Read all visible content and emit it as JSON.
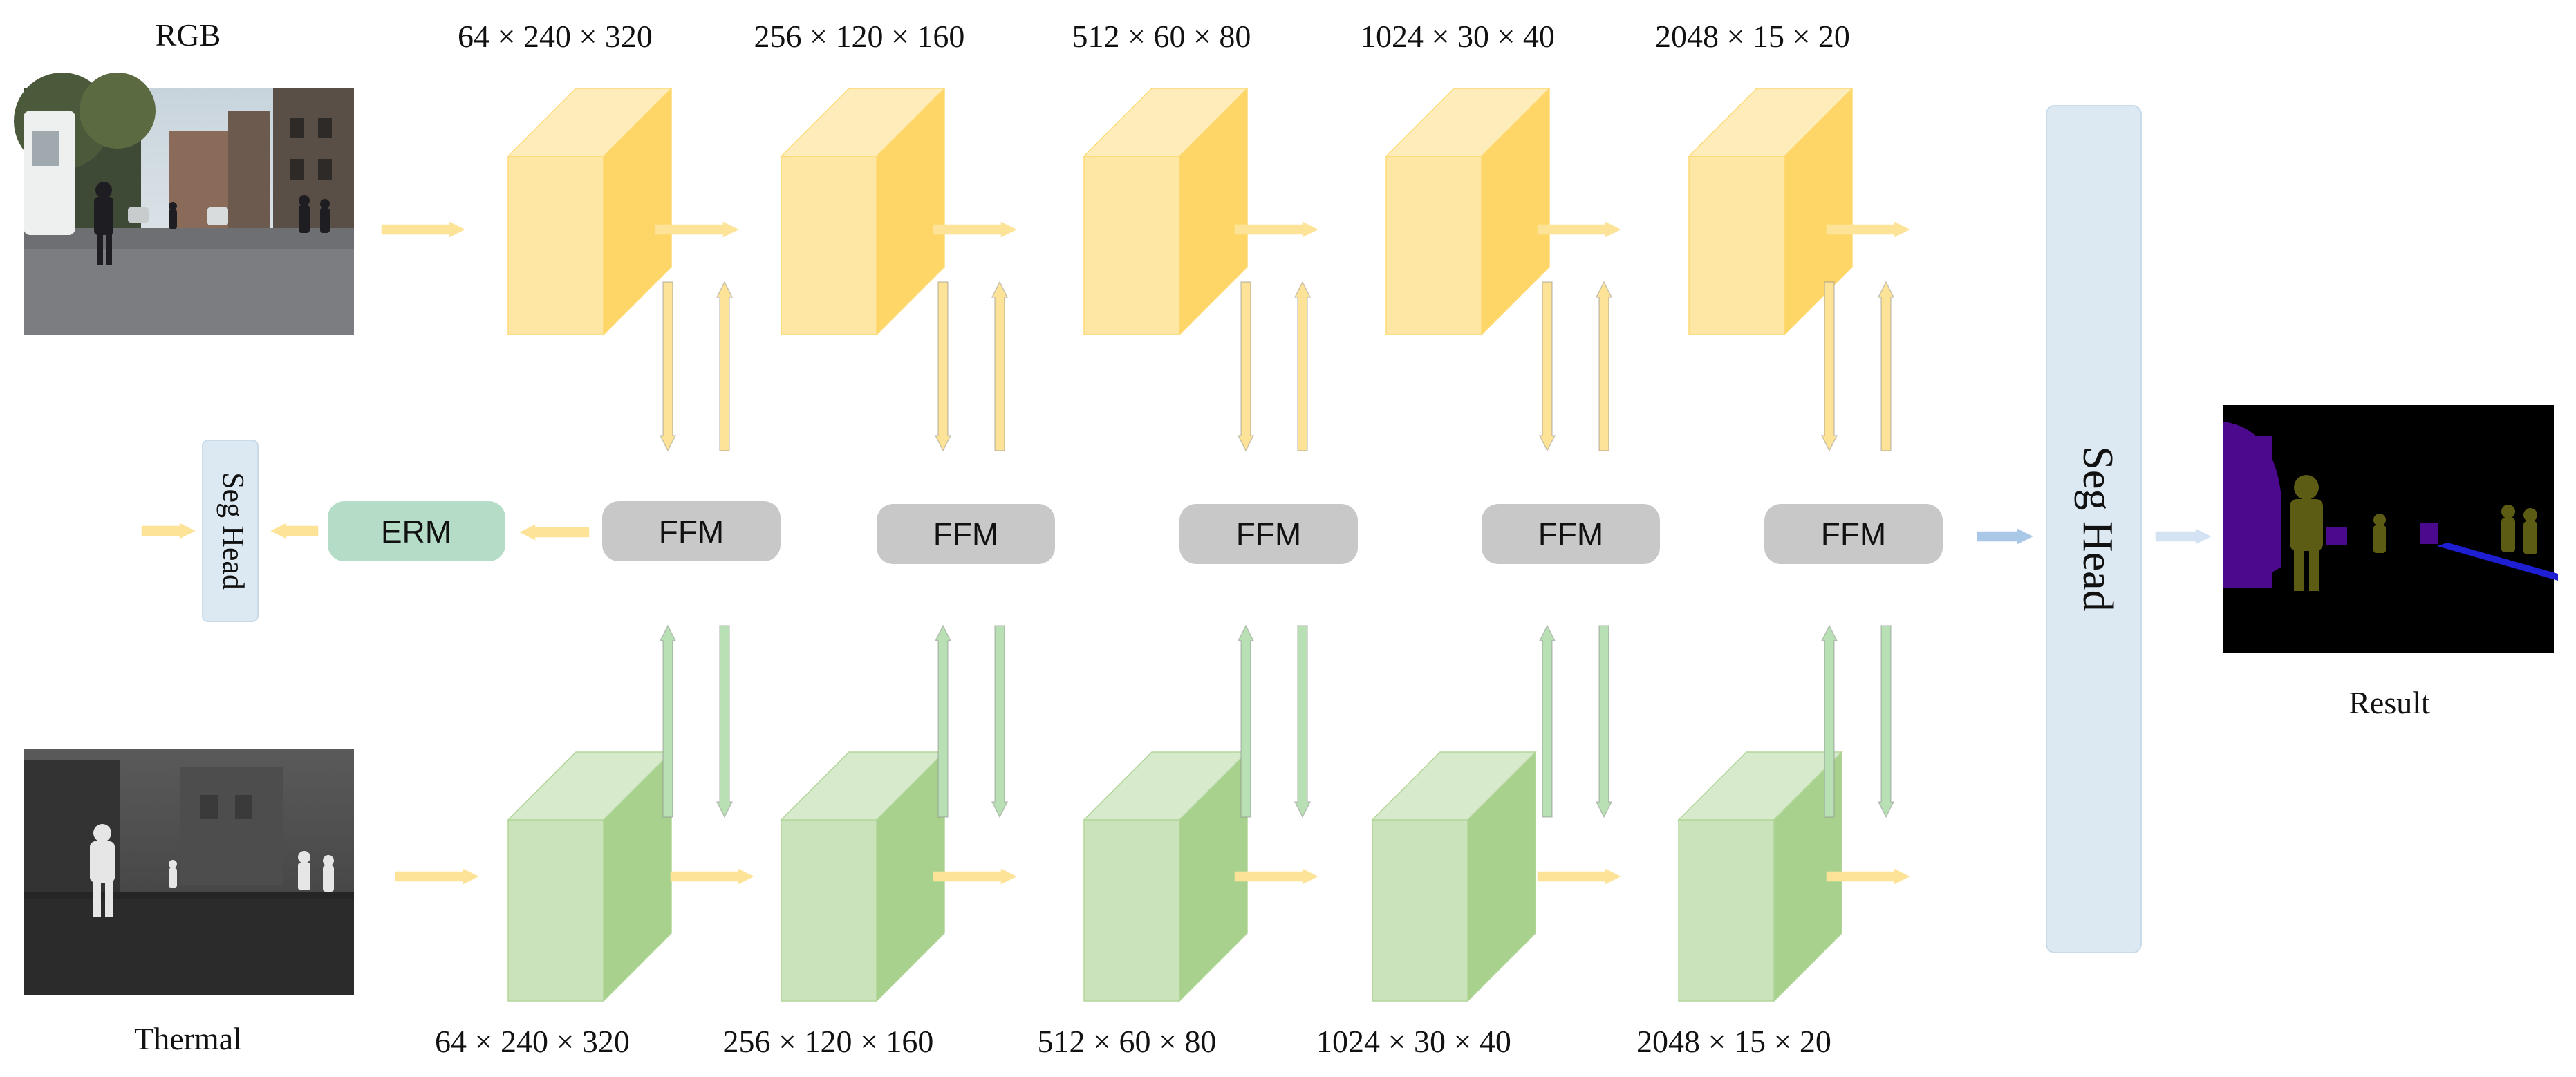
{
  "inputs": {
    "rgb_label": "RGB",
    "thermal_label": "Thermal"
  },
  "output": {
    "result_label": "Result"
  },
  "rgb_stages": [
    {
      "dims": "64 × 240 × 320"
    },
    {
      "dims": "256 × 120 × 160"
    },
    {
      "dims": "512 × 60 × 80"
    },
    {
      "dims": "1024 × 30 × 40"
    },
    {
      "dims": "2048 × 15 × 20"
    }
  ],
  "thermal_stages": [
    {
      "dims": "64 × 240 × 320"
    },
    {
      "dims": "256 × 120 × 160"
    },
    {
      "dims": "512 × 60 × 80"
    },
    {
      "dims": "1024 × 30 × 40"
    },
    {
      "dims": "2048 × 15 × 20"
    }
  ],
  "fusion": {
    "modules": [
      "FFM",
      "FFM",
      "FFM",
      "FFM",
      "FFM"
    ]
  },
  "erm_label": "ERM",
  "seg_head_small_label": "Seg Head",
  "seg_head_label": "Seg Head",
  "colors": {
    "rgb_block": "#fdd667",
    "thermal_block": "#a9d18e",
    "ffm": "#c8c8c8",
    "erm": "#b5dcc7",
    "seg_head": "#dde9f2",
    "arrow_yellow": "#fde398",
    "arrow_green": "#b9dfb4",
    "arrow_blue": "#bcd4ea"
  }
}
